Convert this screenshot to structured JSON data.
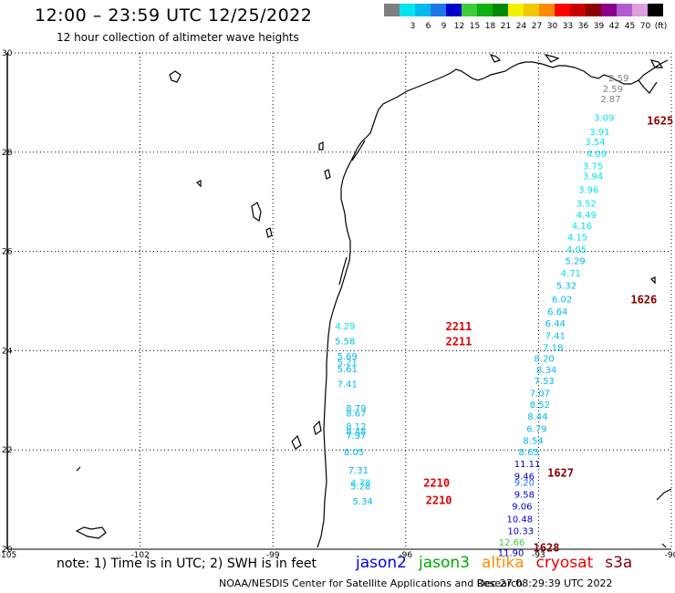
{
  "header": {
    "title": "12:00 – 23:59 UTC 12/25/2022",
    "subtitle": "12 hour collection of altimeter wave heights"
  },
  "color_scale": {
    "bins": [
      {
        "label": "",
        "color": "#7f7f7f"
      },
      {
        "label": "3",
        "color": "#00e5ee"
      },
      {
        "label": "6",
        "color": "#00b8ee"
      },
      {
        "label": "9",
        "color": "#1c78e8"
      },
      {
        "label": "12",
        "color": "#0000cc"
      },
      {
        "label": "15",
        "color": "#3ccc3c"
      },
      {
        "label": "18",
        "color": "#10b010"
      },
      {
        "label": "21",
        "color": "#008a00"
      },
      {
        "label": "24",
        "color": "#f2f200"
      },
      {
        "label": "27",
        "color": "#f2c800"
      },
      {
        "label": "30",
        "color": "#ff8c00"
      },
      {
        "label": "33",
        "color": "#ff0000"
      },
      {
        "label": "36",
        "color": "#c80000"
      },
      {
        "label": "39",
        "color": "#8b0000"
      },
      {
        "label": "42",
        "color": "#8b008b"
      },
      {
        "label": "45",
        "color": "#b05cd0"
      },
      {
        "label": "70",
        "color": "#dda0dd"
      },
      {
        "label": "(ft)",
        "color": "#000000"
      }
    ]
  },
  "map": {
    "lon_labels": [
      "-105",
      "-102",
      "-99",
      "-96",
      "-93",
      "-90"
    ],
    "lat_labels": [
      "30",
      "28",
      "26",
      "24",
      "22",
      "20"
    ],
    "lon_range": [
      -105,
      -90
    ],
    "lat_range": [
      20,
      30
    ]
  },
  "passes": [
    {
      "label": "1625",
      "lon": -90.55,
      "lat": 28.65,
      "color": "#8b0000"
    },
    {
      "label": "1626",
      "lon": -90.92,
      "lat": 25.05,
      "color": "#8b0000"
    },
    {
      "label": "1627",
      "lon": -92.8,
      "lat": 21.55,
      "color": "#8b0000"
    },
    {
      "label": "1628",
      "lon": -93.12,
      "lat": 20.05,
      "color": "#8b0000"
    },
    {
      "label": "2211",
      "lon": -95.1,
      "lat": 24.5,
      "color": "#e00000"
    },
    {
      "label": "2211",
      "lon": -95.1,
      "lat": 24.2,
      "color": "#e00000"
    },
    {
      "label": "2210",
      "lon": -95.6,
      "lat": 21.35,
      "color": "#e00000"
    },
    {
      "label": "2210",
      "lon": -95.55,
      "lat": 21.0,
      "color": "#e00000"
    }
  ],
  "wave_points": [
    {
      "v": "2.59",
      "lon": -91.42,
      "lat": 29.5,
      "color": "#7f7f7f"
    },
    {
      "v": "2.59",
      "lon": -91.55,
      "lat": 29.28,
      "color": "#7f7f7f"
    },
    {
      "v": "2.87",
      "lon": -91.6,
      "lat": 29.08,
      "color": "#7f7f7f"
    },
    {
      "v": "3.09",
      "lon": -91.75,
      "lat": 28.7,
      "color": "#00e5ee"
    },
    {
      "v": "3.91",
      "lon": -91.85,
      "lat": 28.42,
      "color": "#00e5ee"
    },
    {
      "v": "3.54",
      "lon": -91.95,
      "lat": 28.22,
      "color": "#00e5ee"
    },
    {
      "v": "4.09",
      "lon": -91.92,
      "lat": 27.98,
      "color": "#00e5ee"
    },
    {
      "v": "3.75",
      "lon": -92.0,
      "lat": 27.73,
      "color": "#00e5ee"
    },
    {
      "v": "3.94",
      "lon": -92.0,
      "lat": 27.53,
      "color": "#00e5ee"
    },
    {
      "v": "3.96",
      "lon": -92.1,
      "lat": 27.25,
      "color": "#00e5ee"
    },
    {
      "v": "3.52",
      "lon": -92.15,
      "lat": 26.98,
      "color": "#00e5ee"
    },
    {
      "v": "4.49",
      "lon": -92.15,
      "lat": 26.75,
      "color": "#00e5ee"
    },
    {
      "v": "4.16",
      "lon": -92.25,
      "lat": 26.53,
      "color": "#00e5ee"
    },
    {
      "v": "4.15",
      "lon": -92.35,
      "lat": 26.3,
      "color": "#00e5ee"
    },
    {
      "v": "4.05",
      "lon": -92.37,
      "lat": 26.05,
      "color": "#00e5ee"
    },
    {
      "v": "5.29",
      "lon": -92.4,
      "lat": 25.82,
      "color": "#00b8ee"
    },
    {
      "v": "4.71",
      "lon": -92.5,
      "lat": 25.57,
      "color": "#00e5ee"
    },
    {
      "v": "5.32",
      "lon": -92.6,
      "lat": 25.32,
      "color": "#00b8ee"
    },
    {
      "v": "6.02",
      "lon": -92.7,
      "lat": 25.05,
      "color": "#00b8ee"
    },
    {
      "v": "6.64",
      "lon": -92.8,
      "lat": 24.8,
      "color": "#00b8ee"
    },
    {
      "v": "6.44",
      "lon": -92.85,
      "lat": 24.56,
      "color": "#00b8ee"
    },
    {
      "v": "7.41",
      "lon": -92.85,
      "lat": 24.31,
      "color": "#00b8ee"
    },
    {
      "v": "7.18",
      "lon": -92.9,
      "lat": 24.07,
      "color": "#00b8ee"
    },
    {
      "v": "8.20",
      "lon": -93.1,
      "lat": 23.85,
      "color": "#00b8ee"
    },
    {
      "v": "8.34",
      "lon": -93.05,
      "lat": 23.62,
      "color": "#00b8ee"
    },
    {
      "v": "7.53",
      "lon": -93.1,
      "lat": 23.4,
      "color": "#00b8ee"
    },
    {
      "v": "7.07",
      "lon": -93.2,
      "lat": 23.15,
      "color": "#00b8ee"
    },
    {
      "v": "8.52",
      "lon": -93.2,
      "lat": 22.92,
      "color": "#00b8ee"
    },
    {
      "v": "8.44",
      "lon": -93.25,
      "lat": 22.68,
      "color": "#00b8ee"
    },
    {
      "v": "6.79",
      "lon": -93.27,
      "lat": 22.44,
      "color": "#00b8ee"
    },
    {
      "v": "8.54",
      "lon": -93.35,
      "lat": 22.2,
      "color": "#00b8ee"
    },
    {
      "v": "8.65",
      "lon": -93.45,
      "lat": 21.97,
      "color": "#00b8ee"
    },
    {
      "v": "11.11",
      "lon": -93.55,
      "lat": 21.73,
      "color": "#0000cc"
    },
    {
      "v": "9.46",
      "lon": -93.55,
      "lat": 21.48,
      "color": "#0000cc"
    },
    {
      "v": "9.20",
      "lon": -93.55,
      "lat": 21.35,
      "color": "#1c78e8"
    },
    {
      "v": "9.58",
      "lon": -93.55,
      "lat": 21.11,
      "color": "#0000cc"
    },
    {
      "v": "9.06",
      "lon": -93.6,
      "lat": 20.87,
      "color": "#0000cc"
    },
    {
      "v": "10.48",
      "lon": -93.72,
      "lat": 20.62,
      "color": "#0000cc"
    },
    {
      "v": "10.33",
      "lon": -93.7,
      "lat": 20.38,
      "color": "#0000cc"
    },
    {
      "v": "12.66",
      "lon": -93.9,
      "lat": 20.15,
      "color": "#3ccc3c"
    },
    {
      "v": "11.90",
      "lon": -93.92,
      "lat": 19.94,
      "color": "#0000cc"
    },
    {
      "v": "4.29",
      "lon": -97.6,
      "lat": 24.5,
      "color": "#00e5ee"
    },
    {
      "v": "5.58",
      "lon": -97.6,
      "lat": 24.2,
      "color": "#00b8ee"
    },
    {
      "v": "5.69",
      "lon": -97.55,
      "lat": 23.9,
      "color": "#00b8ee"
    },
    {
      "v": "5.21",
      "lon": -97.55,
      "lat": 23.78,
      "color": "#00b8ee"
    },
    {
      "v": "5.61",
      "lon": -97.55,
      "lat": 23.64,
      "color": "#00b8ee"
    },
    {
      "v": "7.41",
      "lon": -97.55,
      "lat": 23.34,
      "color": "#00b8ee"
    },
    {
      "v": "8.79",
      "lon": -97.35,
      "lat": 22.85,
      "color": "#00b8ee"
    },
    {
      "v": "8.67",
      "lon": -97.35,
      "lat": 22.75,
      "color": "#00b8ee"
    },
    {
      "v": "8.12",
      "lon": -97.35,
      "lat": 22.48,
      "color": "#00b8ee"
    },
    {
      "v": "8.48",
      "lon": -97.35,
      "lat": 22.38,
      "color": "#00b8ee"
    },
    {
      "v": "7.97",
      "lon": -97.35,
      "lat": 22.3,
      "color": "#00b8ee"
    },
    {
      "v": "8.05",
      "lon": -97.4,
      "lat": 21.97,
      "color": "#00b8ee"
    },
    {
      "v": "7.31",
      "lon": -97.3,
      "lat": 21.6,
      "color": "#00b8ee"
    },
    {
      "v": "4.78",
      "lon": -97.25,
      "lat": 21.35,
      "color": "#00e5ee"
    },
    {
      "v": "5.28",
      "lon": -97.25,
      "lat": 21.28,
      "color": "#00b8ee"
    },
    {
      "v": "5.34",
      "lon": -97.2,
      "lat": 20.97,
      "color": "#00b8ee"
    }
  ],
  "footer": {
    "note": "note: 1) Time is in UTC; 2) SWH is in feet",
    "satellites": [
      {
        "name": "jason2",
        "color": "#0000ee"
      },
      {
        "name": "jason3",
        "color": "#00aa00"
      },
      {
        "name": "altika",
        "color": "#ff8c00"
      },
      {
        "name": "cryosat",
        "color": "#ee0000"
      },
      {
        "name": "s3a",
        "color": "#8b0000"
      }
    ],
    "credit": "NOAA/NESDIS Center for Satellite Applications and Research",
    "timestamp": "Dec 27 08:29:39 UTC 2022"
  }
}
